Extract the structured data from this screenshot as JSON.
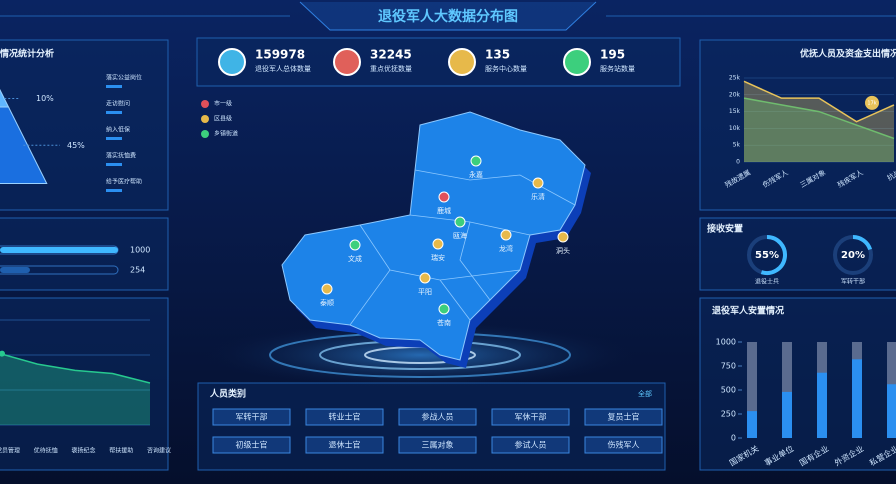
{
  "header": {
    "title": "退役军人大数据分布图"
  },
  "stats": [
    {
      "value": 159978,
      "label": "退役军人总体数量"
    },
    {
      "value": 32245,
      "label": "重点优抚数量"
    },
    {
      "value": 135,
      "label": "服务中心数量"
    },
    {
      "value": 195,
      "label": "服务站数量"
    }
  ],
  "map": {
    "legend": [
      "市一级",
      "区县级",
      "乡镇街道"
    ],
    "regions": [
      "永嘉",
      "乐清",
      "鹿城",
      "瓯海",
      "龙湾",
      "瑞安",
      "文成",
      "平阳",
      "泰顺",
      "苍南",
      "洞头"
    ]
  },
  "category_panel": {
    "title": "人员类别",
    "action": "全部",
    "buttons": [
      "军转干部",
      "转业士官",
      "参战人员",
      "军休干部",
      "复员士官",
      "初级士官",
      "退休士官",
      "三属对象",
      "参试人员",
      "伤残军人"
    ]
  },
  "chart_data": [
    {
      "type": "pyramid",
      "title": "情况统计分析",
      "values": [
        10,
        45
      ],
      "value_labels": [
        "10%",
        "45%"
      ],
      "ylim": [
        0,
        100
      ],
      "items": [
        "落实公益岗位",
        "走访慰问",
        "纳入低保",
        "落实抚恤费",
        "给予医疗帮助"
      ]
    },
    {
      "type": "progress",
      "values": [
        1000,
        254
      ],
      "xlim": [
        0,
        1000
      ]
    },
    {
      "type": "area",
      "categories": [
        "党员管理",
        "优待抚恤",
        "褒扬纪念",
        "帮扶援助",
        "咨询建议"
      ],
      "values": [
        68,
        58,
        52,
        49,
        40
      ],
      "ylim": [
        0,
        100
      ],
      "color": "#27c98f"
    },
    {
      "type": "line",
      "title": "优抚人员及资金支出情况",
      "categories": [
        "残故遗属",
        "伤残军人",
        "三属对象",
        "残疾军人",
        "抗战"
      ],
      "series": [
        {
          "color": "#e8c35a",
          "values": [
            24000,
            19000,
            19000,
            12000,
            17000
          ]
        },
        {
          "color": "#2fb97a",
          "values": [
            19000,
            17000,
            15000,
            11000,
            7000
          ]
        }
      ],
      "annotation": "17k",
      "ylim": [
        0,
        25000
      ],
      "yticks": [
        0,
        {
          "value": 5000,
          "label": "5k"
        },
        {
          "value": 10000,
          "label": "10k"
        },
        {
          "value": 15000,
          "label": "15k"
        },
        {
          "value": 20000,
          "label": "20k"
        },
        {
          "value": 25000,
          "label": "25k"
        }
      ],
      "grid": true
    },
    {
      "type": "gauge",
      "title": "接收安置",
      "categories": [
        "退役士兵",
        "军转干部"
      ],
      "values": [
        55,
        20
      ],
      "value_labels": [
        "55%",
        "20%"
      ],
      "ylim": [
        0,
        100
      ]
    },
    {
      "type": "bar",
      "title": "退役军人安置情况",
      "categories": [
        "国家机关",
        "事业单位",
        "国有企业",
        "外资企业",
        "私营企业"
      ],
      "values": [
        280,
        480,
        680,
        820,
        560
      ],
      "ylim": [
        0,
        1000
      ],
      "yticks": [
        0,
        250,
        500,
        750,
        1000
      ],
      "color": "#2b8ff0"
    }
  ]
}
